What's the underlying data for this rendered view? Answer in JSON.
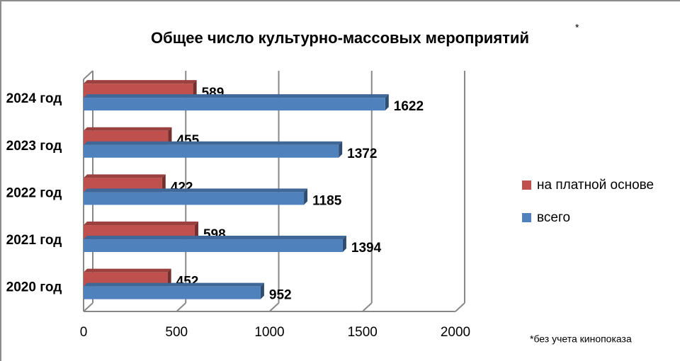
{
  "chart_data": {
    "type": "bar",
    "orientation": "horizontal",
    "title": "Общее число культурно-массовых  мероприятий",
    "title_mark": "*",
    "note": "*без учета кинопоказа",
    "categories": [
      "2020 год",
      "2021 год",
      "2022 год",
      "2023 год",
      "2024 год"
    ],
    "series": [
      {
        "name": "на платной основе",
        "color": "#c0504d",
        "values": [
          452,
          598,
          422,
          455,
          589
        ]
      },
      {
        "name": "всего",
        "color": "#4f81bd",
        "values": [
          952,
          1394,
          1185,
          1372,
          1622
        ]
      }
    ],
    "xlim": [
      0,
      2000
    ],
    "xticks": [
      0,
      500,
      1000,
      1500,
      2000
    ],
    "grid": true,
    "legend": "right"
  }
}
